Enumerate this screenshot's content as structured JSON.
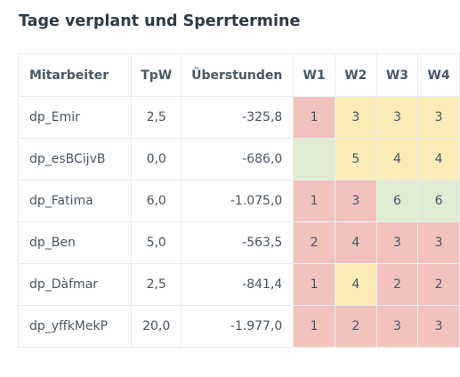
{
  "title": "Tage verplant und Sperrtermine",
  "colors": {
    "red": "#f2c2bd",
    "yellow": "#fbecb8",
    "green": "#dfecd2"
  },
  "headers": {
    "name": "Mitarbeiter",
    "tpw": "TpW",
    "overtime": "Überstunden",
    "w1": "W1",
    "w2": "W2",
    "w3": "W3",
    "w4": "W4"
  },
  "rows": [
    {
      "name": "dp_Emir",
      "tpw": "2,5",
      "overtime": "-325,8",
      "weeks": [
        {
          "value": "1",
          "status": "red"
        },
        {
          "value": "3",
          "status": "yellow"
        },
        {
          "value": "3",
          "status": "yellow"
        },
        {
          "value": "3",
          "status": "yellow"
        }
      ]
    },
    {
      "name": "dp_esBCijvB",
      "tpw": "0,0",
      "overtime": "-686,0",
      "weeks": [
        {
          "value": "",
          "status": "green"
        },
        {
          "value": "5",
          "status": "yellow"
        },
        {
          "value": "4",
          "status": "yellow"
        },
        {
          "value": "4",
          "status": "yellow"
        }
      ]
    },
    {
      "name": "dp_Fatima",
      "tpw": "6,0",
      "overtime": "-1.075,0",
      "weeks": [
        {
          "value": "1",
          "status": "red"
        },
        {
          "value": "3",
          "status": "red"
        },
        {
          "value": "6",
          "status": "green"
        },
        {
          "value": "6",
          "status": "green"
        }
      ]
    },
    {
      "name": "dp_Ben",
      "tpw": "5,0",
      "overtime": "-563,5",
      "weeks": [
        {
          "value": "2",
          "status": "red"
        },
        {
          "value": "4",
          "status": "red"
        },
        {
          "value": "3",
          "status": "red"
        },
        {
          "value": "3",
          "status": "red"
        }
      ]
    },
    {
      "name": "dp_Dàfmar",
      "tpw": "2,5",
      "overtime": "-841,4",
      "weeks": [
        {
          "value": "1",
          "status": "red"
        },
        {
          "value": "4",
          "status": "yellow"
        },
        {
          "value": "2",
          "status": "red"
        },
        {
          "value": "2",
          "status": "red"
        }
      ]
    },
    {
      "name": "dp_yffkMekP",
      "tpw": "20,0",
      "overtime": "-1.977,0",
      "weeks": [
        {
          "value": "1",
          "status": "red"
        },
        {
          "value": "2",
          "status": "red"
        },
        {
          "value": "3",
          "status": "red"
        },
        {
          "value": "3",
          "status": "red"
        }
      ]
    }
  ]
}
